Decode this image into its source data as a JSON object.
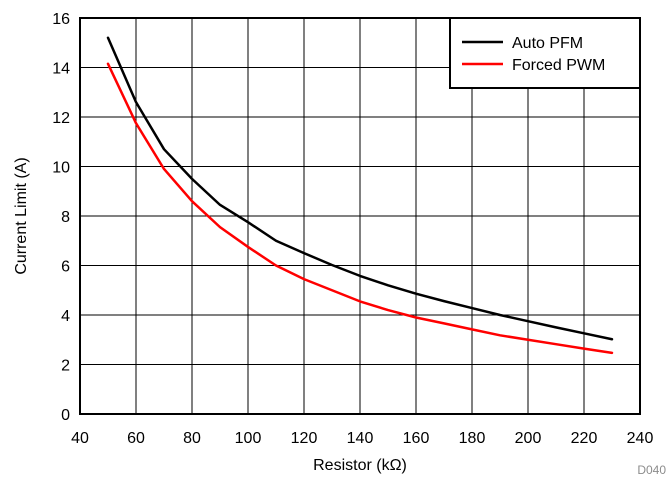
{
  "chart_data": {
    "type": "line",
    "title": "",
    "xlabel": "Resistor (kΩ)",
    "ylabel": "Current Limit (A)",
    "xlim": [
      40,
      240
    ],
    "ylim": [
      0,
      16
    ],
    "xticks": [
      40,
      60,
      80,
      100,
      120,
      140,
      160,
      180,
      200,
      220,
      240
    ],
    "yticks": [
      0,
      2,
      4,
      6,
      8,
      10,
      12,
      14,
      16
    ],
    "grid": true,
    "legend_position": "top-right",
    "figure_id": "D040",
    "series": [
      {
        "name": "Auto PFM",
        "color": "#000000",
        "x": [
          50,
          60,
          70,
          80,
          90,
          100,
          110,
          120,
          130,
          140,
          150,
          160,
          170,
          180,
          190,
          200,
          210,
          220,
          230
        ],
        "y": [
          15.2,
          12.6,
          10.7,
          9.5,
          8.45,
          7.75,
          7.0,
          6.5,
          6.02,
          5.58,
          5.2,
          4.86,
          4.56,
          4.28,
          4.0,
          3.75,
          3.5,
          3.26,
          3.02
        ]
      },
      {
        "name": "Forced PWM",
        "color": "#ff0000",
        "x": [
          50,
          60,
          70,
          80,
          90,
          100,
          110,
          120,
          130,
          140,
          150,
          160,
          170,
          180,
          190,
          200,
          210,
          220,
          230
        ],
        "y": [
          14.15,
          11.75,
          9.9,
          8.6,
          7.55,
          6.75,
          6.0,
          5.45,
          5.0,
          4.55,
          4.2,
          3.9,
          3.66,
          3.42,
          3.18,
          3.0,
          2.82,
          2.64,
          2.47
        ]
      }
    ]
  }
}
